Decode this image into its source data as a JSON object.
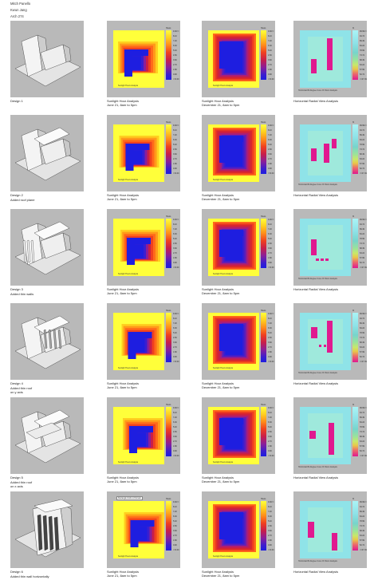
{
  "header": {
    "name": "Mitch Panello",
    "professor": "Kwun Jang",
    "course": "Arch 274"
  },
  "captions": {
    "summer": [
      "Sunlight Hour Analysis",
      "June 21, 8am to 5pm"
    ],
    "winter": [
      "Sunlight Hour Analysis",
      "December 21, 8am to 5pm"
    ],
    "view": "Horizontal Radial View Analysis"
  },
  "inner_labels": {
    "sunlight": "Sunlight Hours Analysis",
    "view": "Horizontal 80-Degree Cone Of Vision Analysis",
    "rectangle": "Rectangle Grids to Domain"
  },
  "legend": {
    "sun_unit": "Hours",
    "sun_ticks": [
      "9.00<=",
      "8.10",
      "7.20",
      "6.30",
      "5.40",
      "4.50",
      "3.60",
      "2.70",
      "1.80",
      "0.90",
      "<=0.00"
    ],
    "view_unit": "%",
    "view_ticks": [
      "99.99<=",
      "94.74",
      "89.49",
      "84.24",
      "78.99",
      "73.74",
      "68.49",
      "63.24",
      "57.99",
      "52.74",
      "<=47.49"
    ]
  },
  "designs": [
    {
      "label": "Design 1",
      "subtitle": []
    },
    {
      "label": "Design 2",
      "subtitle": [
        "Added roof plane"
      ]
    },
    {
      "label": "Design 3",
      "subtitle": [
        "Added thin walls"
      ]
    },
    {
      "label": "Design 4",
      "subtitle": [
        "Added thin roof",
        "on y axis"
      ]
    },
    {
      "label": "Design 5",
      "subtitle": [
        "Added thin roof",
        "on x axis"
      ]
    },
    {
      "label": "Design 6",
      "subtitle": [
        "Added thin wall horizontally"
      ]
    }
  ],
  "colors": {
    "panel": "#b9b9b9",
    "sun_high": "#ffff3a",
    "sun_low": "#1e1ee0",
    "view_bg": "#8fe3e8",
    "view_low": "#e0198f"
  }
}
